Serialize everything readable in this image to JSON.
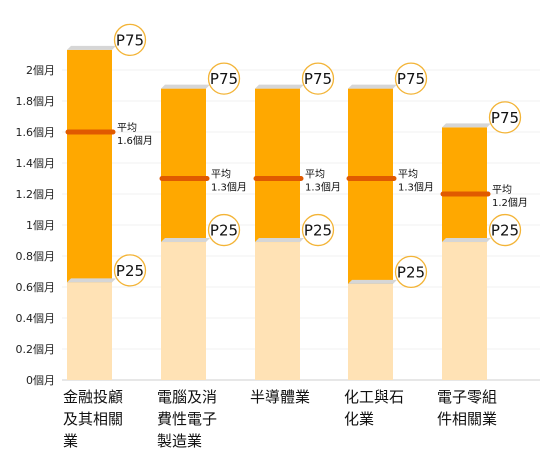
{
  "chart_data": {
    "type": "bar",
    "subtype": "floating-range",
    "unit": "個月",
    "yticks": [
      "0個月",
      "0.2個月",
      "0.4個月",
      "0.6個月",
      "0.8個月",
      "1個月",
      "1.2個月",
      "1.4個月",
      "1.6個月",
      "1.8個月",
      "2個月"
    ],
    "ylim": [
      0,
      2.1
    ],
    "grid": true,
    "colors": {
      "range": "#FFA800",
      "below": "#FFE2B5",
      "avg_line": "#E05A00",
      "cap": "#D6D6D6",
      "badge_border": "#F3B437"
    },
    "markers": {
      "p75": "P75",
      "p25": "P25",
      "avg": "平均"
    },
    "categories": [
      {
        "label_lines": [
          "金融投顧",
          "及其相關",
          "業"
        ],
        "p25": 0.63,
        "p75": 2.13,
        "avg": 1.6,
        "avg_label": "1.6個月"
      },
      {
        "label_lines": [
          "電腦及消",
          "費性電子",
          "製造業"
        ],
        "p25": 0.89,
        "p75": 1.88,
        "avg": 1.3,
        "avg_label": "1.3個月"
      },
      {
        "label_lines": [
          "半導體業"
        ],
        "p25": 0.89,
        "p75": 1.88,
        "avg": 1.3,
        "avg_label": "1.3個月"
      },
      {
        "label_lines": [
          "化工與石",
          "化業"
        ],
        "p25": 0.62,
        "p75": 1.88,
        "avg": 1.3,
        "avg_label": "1.3個月"
      },
      {
        "label_lines": [
          "電子零組",
          "件相關業"
        ],
        "p25": 0.89,
        "p75": 1.63,
        "avg": 1.2,
        "avg_label": "1.2個月"
      }
    ]
  }
}
